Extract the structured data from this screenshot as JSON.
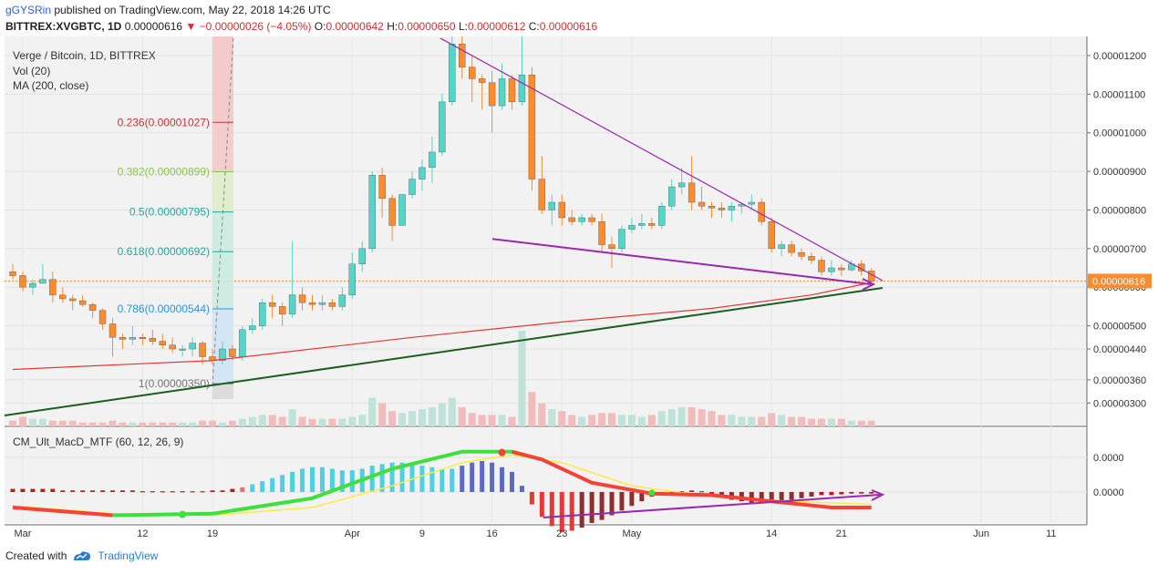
{
  "header": {
    "author": "gGYSRin",
    "published": "published on TradingView.com, May 22, 2018 14:26 UTC",
    "symbol": "BITTREX:XVGBTC, 1D",
    "last": "0.00000616",
    "change": "−0.00000026 (−4.05%)",
    "o_label": "O:",
    "o": "0.00000642",
    "h_label": "H:",
    "h": "0.00000650",
    "l_label": "L:",
    "l": "0.00000612",
    "c_label": "C:",
    "c": "0.00000616"
  },
  "legend": {
    "series": "Verge / Bitcoin, 1D, BITTREX",
    "vol": "Vol (20)",
    "ma": "MA (200, close)",
    "macd": "CM_Ult_MacD_MTF (60, 12, 26, 9)"
  },
  "footer": {
    "created_with": "Created with",
    "brand": "TradingView"
  },
  "colors": {
    "up": "#53d6c8",
    "down": "#fb8c2d",
    "ma": "#e53935",
    "support": "#1b5e20",
    "wedge": "#9c27b0",
    "macd_up": "#3ee03e",
    "macd_down": "#f44336",
    "signal": "#ffeb3b"
  },
  "chart_data": {
    "type": "candlestick",
    "x_labels": [
      "Mar",
      "12",
      "19",
      "Apr",
      "9",
      "16",
      "23",
      "May",
      "14",
      "21",
      "Jun",
      "11"
    ],
    "y_ticks": [
      "0.00001200",
      "0.00001100",
      "0.00001000",
      "0.00000900",
      "0.00000800",
      "0.00000700",
      "0.00000600",
      "0.00000500",
      "0.00000440",
      "0.00000360",
      "0.00000300"
    ],
    "y_ticks_values": [
      1200,
      1100,
      1000,
      900,
      800,
      700,
      600,
      500,
      440,
      360,
      300
    ],
    "last_price_label": "0.00000616",
    "last_price": 616,
    "unit": "1e-8 BTC",
    "fib_levels": [
      {
        "label": "0.236(0.00001027)",
        "value": 1027,
        "color": "#d32f2f"
      },
      {
        "label": "0.382(0.00000899)",
        "value": 899,
        "color": "#8bc34a"
      },
      {
        "label": "0.5(0.00000795)",
        "value": 795,
        "color": "#26a69a"
      },
      {
        "label": "0.618(0.00000692)",
        "value": 692,
        "color": "#26a69a"
      },
      {
        "label": "0.786(0.00000544)",
        "value": 544,
        "color": "#2196f3"
      },
      {
        "label": "1(0.00000350)",
        "value": 350,
        "color": "#757575"
      }
    ],
    "candles": [
      [
        0,
        640,
        660,
        620,
        630
      ],
      [
        1,
        630,
        640,
        590,
        600
      ],
      [
        2,
        600,
        620,
        580,
        610
      ],
      [
        3,
        610,
        660,
        610,
        620
      ],
      [
        4,
        620,
        640,
        560,
        580
      ],
      [
        5,
        580,
        600,
        560,
        570
      ],
      [
        6,
        570,
        580,
        540,
        565
      ],
      [
        7,
        565,
        580,
        550,
        555
      ],
      [
        8,
        555,
        560,
        520,
        540
      ],
      [
        9,
        540,
        545,
        490,
        505
      ],
      [
        10,
        505,
        520,
        420,
        470
      ],
      [
        11,
        470,
        480,
        440,
        465
      ],
      [
        12,
        465,
        500,
        450,
        470
      ],
      [
        13,
        470,
        480,
        450,
        468
      ],
      [
        14,
        468,
        490,
        450,
        460
      ],
      [
        15,
        460,
        480,
        440,
        450
      ],
      [
        16,
        450,
        470,
        430,
        440
      ],
      [
        17,
        440,
        450,
        420,
        440
      ],
      [
        18,
        440,
        470,
        420,
        455
      ],
      [
        19,
        455,
        460,
        400,
        420
      ],
      [
        20,
        420,
        440,
        400,
        410
      ],
      [
        21,
        410,
        460,
        400,
        440
      ],
      [
        22,
        440,
        450,
        410,
        420
      ],
      [
        23,
        420,
        500,
        410,
        490
      ],
      [
        24,
        490,
        520,
        480,
        500
      ],
      [
        25,
        500,
        570,
        490,
        560
      ],
      [
        26,
        560,
        580,
        520,
        550
      ],
      [
        27,
        550,
        560,
        500,
        530
      ],
      [
        28,
        530,
        720,
        520,
        580
      ],
      [
        29,
        580,
        600,
        540,
        560
      ],
      [
        30,
        560,
        580,
        540,
        555
      ],
      [
        31,
        555,
        580,
        540,
        560
      ],
      [
        32,
        560,
        570,
        540,
        550
      ],
      [
        33,
        550,
        600,
        540,
        580
      ],
      [
        34,
        580,
        690,
        570,
        660
      ],
      [
        35,
        660,
        720,
        640,
        700
      ],
      [
        36,
        700,
        900,
        690,
        890
      ],
      [
        37,
        890,
        910,
        780,
        830
      ],
      [
        38,
        830,
        840,
        720,
        760
      ],
      [
        39,
        760,
        840,
        760,
        840
      ],
      [
        40,
        840,
        900,
        830,
        880
      ],
      [
        41,
        880,
        930,
        850,
        910
      ],
      [
        42,
        910,
        990,
        870,
        950
      ],
      [
        43,
        950,
        1100,
        940,
        1080
      ],
      [
        44,
        1080,
        1260,
        1070,
        1230
      ],
      [
        45,
        1230,
        1250,
        1140,
        1170
      ],
      [
        46,
        1170,
        1200,
        1080,
        1140
      ],
      [
        47,
        1140,
        1150,
        1060,
        1130
      ],
      [
        48,
        1130,
        1160,
        1000,
        1070
      ],
      [
        49,
        1070,
        1180,
        1060,
        1140
      ],
      [
        50,
        1140,
        1150,
        1060,
        1080
      ],
      [
        51,
        1080,
        1250,
        1070,
        1150
      ],
      [
        52,
        1150,
        1170,
        850,
        880
      ],
      [
        53,
        880,
        940,
        790,
        800
      ],
      [
        54,
        800,
        840,
        760,
        820
      ],
      [
        55,
        820,
        840,
        760,
        780
      ],
      [
        56,
        780,
        800,
        760,
        770
      ],
      [
        57,
        770,
        790,
        760,
        780
      ],
      [
        58,
        780,
        790,
        760,
        770
      ],
      [
        59,
        770,
        790,
        690,
        710
      ],
      [
        60,
        710,
        730,
        650,
        700
      ],
      [
        61,
        700,
        760,
        690,
        750
      ],
      [
        62,
        750,
        780,
        740,
        760
      ],
      [
        63,
        760,
        790,
        750,
        765
      ],
      [
        64,
        765,
        780,
        750,
        760
      ],
      [
        65,
        760,
        820,
        750,
        810
      ],
      [
        66,
        810,
        880,
        800,
        860
      ],
      [
        67,
        860,
        910,
        840,
        870
      ],
      [
        68,
        870,
        940,
        800,
        820
      ],
      [
        69,
        820,
        860,
        800,
        810
      ],
      [
        70,
        810,
        820,
        780,
        805
      ],
      [
        71,
        805,
        820,
        780,
        800
      ],
      [
        72,
        800,
        820,
        770,
        810
      ],
      [
        73,
        810,
        820,
        790,
        815
      ],
      [
        74,
        815,
        840,
        800,
        820
      ],
      [
        75,
        820,
        830,
        760,
        770
      ],
      [
        76,
        770,
        780,
        690,
        700
      ],
      [
        77,
        700,
        720,
        680,
        710
      ],
      [
        78,
        710,
        720,
        680,
        690
      ],
      [
        79,
        690,
        700,
        670,
        680
      ],
      [
        80,
        680,
        690,
        660,
        670
      ],
      [
        81,
        670,
        680,
        630,
        640
      ],
      [
        82,
        640,
        670,
        630,
        650
      ],
      [
        83,
        650,
        660,
        630,
        645
      ],
      [
        84,
        645,
        670,
        640,
        660
      ],
      [
        85,
        660,
        670,
        630,
        642
      ],
      [
        86,
        642,
        650,
        612,
        616
      ]
    ],
    "ma200": [
      [
        0,
        387
      ],
      [
        20,
        410
      ],
      [
        40,
        470
      ],
      [
        55,
        510
      ],
      [
        70,
        545
      ],
      [
        80,
        580
      ],
      [
        86,
        612
      ]
    ],
    "volume": [
      3,
      5,
      4,
      4,
      3,
      3,
      3,
      2,
      2,
      2,
      3,
      2,
      2,
      2,
      2,
      2,
      2,
      2,
      2,
      3,
      3,
      2,
      3,
      4,
      5,
      6,
      6,
      5,
      9,
      5,
      4,
      4,
      4,
      4,
      5,
      6,
      15,
      12,
      8,
      7,
      8,
      9,
      10,
      12,
      15,
      10,
      7,
      6,
      6,
      6,
      5,
      50,
      18,
      12,
      9,
      8,
      6,
      5,
      6,
      7,
      7,
      6,
      6,
      5,
      6,
      8,
      9,
      10,
      10,
      9,
      8,
      6,
      6,
      5,
      5,
      5,
      7,
      6,
      5,
      5,
      4,
      4,
      4,
      4,
      3,
      3,
      3
    ],
    "macd_hist": [
      0.2,
      0.2,
      0.2,
      0.2,
      0.2,
      0.1,
      0.1,
      0.1,
      0.1,
      0.1,
      0.1,
      0.1,
      0.1,
      0.05,
      0.05,
      0.05,
      0.05,
      0.05,
      0.05,
      0.05,
      0.1,
      0.1,
      0.2,
      0.3,
      0.5,
      0.7,
      0.9,
      1.1,
      1.3,
      1.5,
      1.6,
      1.6,
      1.5,
      1.4,
      1.4,
      1.5,
      1.7,
      1.8,
      1.9,
      1.9,
      1.8,
      1.7,
      1.6,
      1.5,
      1.5,
      1.7,
      1.9,
      2.0,
      1.9,
      1.6,
      1.3,
      0.4,
      -0.8,
      -1.6,
      -2.2,
      -2.6,
      -2.5,
      -2.3,
      -2.0,
      -1.8,
      -1.5,
      -1.2,
      -0.9,
      -0.6,
      -0.3,
      -0.1,
      0.0,
      0.05,
      0.1,
      0.05,
      -0.1,
      -0.3,
      -0.5,
      -0.6,
      -0.7,
      -0.7,
      -0.6,
      -0.6,
      -0.5,
      -0.4,
      -0.3,
      -0.2,
      -0.2,
      -0.15,
      -0.1,
      -0.1,
      -0.1
    ],
    "macd_line": [
      [
        0,
        -1.0
      ],
      [
        10,
        -1.5
      ],
      [
        20,
        -1.4
      ],
      [
        30,
        -0.4
      ],
      [
        38,
        1.5
      ],
      [
        45,
        2.6
      ],
      [
        50,
        2.6
      ],
      [
        53,
        2.1
      ],
      [
        58,
        0.6
      ],
      [
        64,
        -0.1
      ],
      [
        70,
        -0.2
      ],
      [
        76,
        -0.6
      ],
      [
        82,
        -1.0
      ],
      [
        86,
        -1.0
      ]
    ],
    "signal_line": [
      [
        0,
        -0.9
      ],
      [
        10,
        -1.4
      ],
      [
        20,
        -1.5
      ],
      [
        30,
        -1.0
      ],
      [
        38,
        0.4
      ],
      [
        45,
        1.9
      ],
      [
        50,
        2.4
      ],
      [
        55,
        1.9
      ],
      [
        62,
        0.4
      ],
      [
        70,
        -0.3
      ],
      [
        78,
        -0.6
      ],
      [
        86,
        -0.8
      ]
    ],
    "macd_ticks": [
      "0.0000",
      "0.0000"
    ]
  }
}
